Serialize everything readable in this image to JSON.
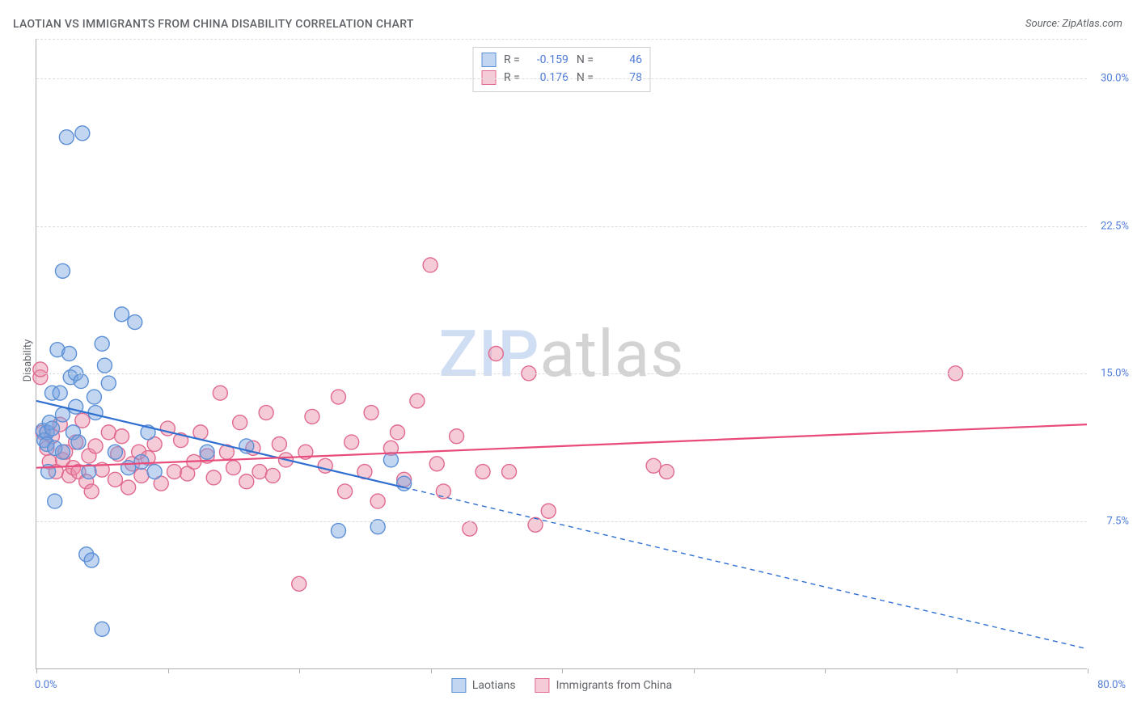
{
  "title": "LAOTIAN VS IMMIGRANTS FROM CHINA DISABILITY CORRELATION CHART",
  "source_label": "Source: ZipAtlas.com",
  "ylabel": "Disability",
  "watermark": {
    "part1": "ZIP",
    "part2": "atlas"
  },
  "chart": {
    "type": "scatter",
    "background_color": "#ffffff",
    "grid_color": "#dcdcdc",
    "axis_color": "#b0b0b0",
    "text_color": "#5f6368",
    "value_color": "#4f7bd9",
    "xlim": [
      0,
      80
    ],
    "ylim": [
      0,
      32
    ],
    "yticks": [
      7.5,
      15.0,
      22.5,
      30.0
    ],
    "ytick_labels": [
      "7.5%",
      "15.0%",
      "22.5%",
      "30.0%"
    ],
    "xticks": [
      0,
      10,
      20,
      30,
      40,
      50,
      60,
      70,
      80
    ],
    "x_origin_label": "0.0%",
    "x_max_label": "80.0%",
    "marker_radius": 9,
    "marker_stroke_width": 1.4,
    "line_width": 2.2,
    "dash_pattern": "6 5"
  },
  "series": [
    {
      "id": "laotians",
      "label": "Laotians",
      "fill": "rgba(120,164,224,0.45)",
      "stroke": "#5b8fd6",
      "line_color": "#2e6fd1",
      "R": "-0.159",
      "N": "46",
      "trend": {
        "x1": 0,
        "y1": 13.6,
        "x2": 28,
        "y2": 9.2,
        "dash_x2": 80,
        "dash_y2": 1.0
      },
      "points": [
        [
          0.5,
          12.1
        ],
        [
          0.6,
          11.6
        ],
        [
          0.8,
          12.0
        ],
        [
          0.8,
          11.4
        ],
        [
          0.9,
          10.0
        ],
        [
          1.0,
          12.5
        ],
        [
          1.2,
          14.0
        ],
        [
          1.2,
          12.2
        ],
        [
          1.4,
          11.2
        ],
        [
          1.4,
          8.5
        ],
        [
          1.6,
          16.2
        ],
        [
          1.8,
          14.0
        ],
        [
          2.0,
          12.9
        ],
        [
          2.0,
          11.0
        ],
        [
          2.0,
          20.2
        ],
        [
          2.3,
          27.0
        ],
        [
          2.5,
          16.0
        ],
        [
          2.6,
          14.8
        ],
        [
          2.8,
          12.0
        ],
        [
          3.0,
          15.0
        ],
        [
          3.0,
          13.3
        ],
        [
          3.2,
          11.5
        ],
        [
          3.4,
          14.6
        ],
        [
          3.5,
          27.2
        ],
        [
          3.8,
          5.8
        ],
        [
          4.0,
          10.0
        ],
        [
          4.2,
          5.5
        ],
        [
          4.4,
          13.8
        ],
        [
          4.5,
          13.0
        ],
        [
          5.0,
          16.5
        ],
        [
          5.0,
          2.0
        ],
        [
          5.2,
          15.4
        ],
        [
          5.5,
          14.5
        ],
        [
          6.0,
          11.0
        ],
        [
          6.5,
          18.0
        ],
        [
          7.0,
          10.2
        ],
        [
          7.5,
          17.6
        ],
        [
          8.0,
          10.5
        ],
        [
          8.5,
          12.0
        ],
        [
          9.0,
          10.0
        ],
        [
          13.0,
          11.0
        ],
        [
          16.0,
          11.3
        ],
        [
          23.0,
          7.0
        ],
        [
          26.0,
          7.2
        ],
        [
          27.0,
          10.6
        ],
        [
          28.0,
          9.4
        ]
      ]
    },
    {
      "id": "immigrants_china",
      "label": "Immigrants from China",
      "fill": "rgba(236,140,168,0.45)",
      "stroke": "#e06a8f",
      "line_color": "#e84a7a",
      "R": "0.176",
      "N": "78",
      "trend": {
        "x1": 0,
        "y1": 10.2,
        "x2": 80,
        "y2": 12.4
      },
      "points": [
        [
          0.3,
          14.8
        ],
        [
          0.5,
          12.0
        ],
        [
          0.8,
          11.2
        ],
        [
          1.0,
          10.5
        ],
        [
          1.2,
          11.8
        ],
        [
          1.5,
          10.0
        ],
        [
          1.8,
          12.4
        ],
        [
          2.0,
          10.6
        ],
        [
          2.2,
          11.0
        ],
        [
          2.5,
          9.8
        ],
        [
          2.8,
          10.2
        ],
        [
          3.0,
          11.5
        ],
        [
          3.2,
          10.0
        ],
        [
          3.5,
          12.6
        ],
        [
          3.8,
          9.5
        ],
        [
          4.0,
          10.8
        ],
        [
          4.2,
          9.0
        ],
        [
          4.5,
          11.3
        ],
        [
          5.0,
          10.1
        ],
        [
          5.5,
          12.0
        ],
        [
          6.0,
          9.6
        ],
        [
          6.2,
          10.9
        ],
        [
          6.5,
          11.8
        ],
        [
          7.0,
          9.2
        ],
        [
          7.3,
          10.4
        ],
        [
          7.8,
          11.0
        ],
        [
          8.0,
          9.8
        ],
        [
          8.5,
          10.7
        ],
        [
          9.0,
          11.4
        ],
        [
          9.5,
          9.4
        ],
        [
          10.0,
          12.2
        ],
        [
          10.5,
          10.0
        ],
        [
          11.0,
          11.6
        ],
        [
          11.5,
          9.9
        ],
        [
          12.0,
          10.5
        ],
        [
          12.5,
          12.0
        ],
        [
          13.0,
          10.8
        ],
        [
          13.5,
          9.7
        ],
        [
          14.0,
          14.0
        ],
        [
          14.5,
          11.0
        ],
        [
          15.0,
          10.2
        ],
        [
          15.5,
          12.5
        ],
        [
          16.0,
          9.5
        ],
        [
          16.5,
          11.2
        ],
        [
          17.0,
          10.0
        ],
        [
          17.5,
          13.0
        ],
        [
          18.0,
          9.8
        ],
        [
          18.5,
          11.4
        ],
        [
          19.0,
          10.6
        ],
        [
          20.0,
          4.3
        ],
        [
          20.5,
          11.0
        ],
        [
          21.0,
          12.8
        ],
        [
          22.0,
          10.3
        ],
        [
          23.0,
          13.8
        ],
        [
          23.5,
          9.0
        ],
        [
          24.0,
          11.5
        ],
        [
          25.0,
          10.0
        ],
        [
          25.5,
          13.0
        ],
        [
          26.0,
          8.5
        ],
        [
          27.0,
          11.2
        ],
        [
          27.5,
          12.0
        ],
        [
          28.0,
          9.6
        ],
        [
          29.0,
          13.6
        ],
        [
          30.0,
          20.5
        ],
        [
          30.5,
          10.4
        ],
        [
          31.0,
          9.0
        ],
        [
          32.0,
          11.8
        ],
        [
          33.0,
          7.1
        ],
        [
          34.0,
          10.0
        ],
        [
          35.0,
          16.0
        ],
        [
          36.0,
          10.0
        ],
        [
          37.5,
          15.0
        ],
        [
          38.0,
          7.3
        ],
        [
          39.0,
          8.0
        ],
        [
          47.0,
          10.3
        ],
        [
          48.0,
          10.0
        ],
        [
          70.0,
          15.0
        ],
        [
          0.3,
          15.2
        ]
      ]
    }
  ],
  "legend_bottom": [
    {
      "label": "Laotians",
      "series": 0
    },
    {
      "label": "Immigrants from China",
      "series": 1
    }
  ]
}
